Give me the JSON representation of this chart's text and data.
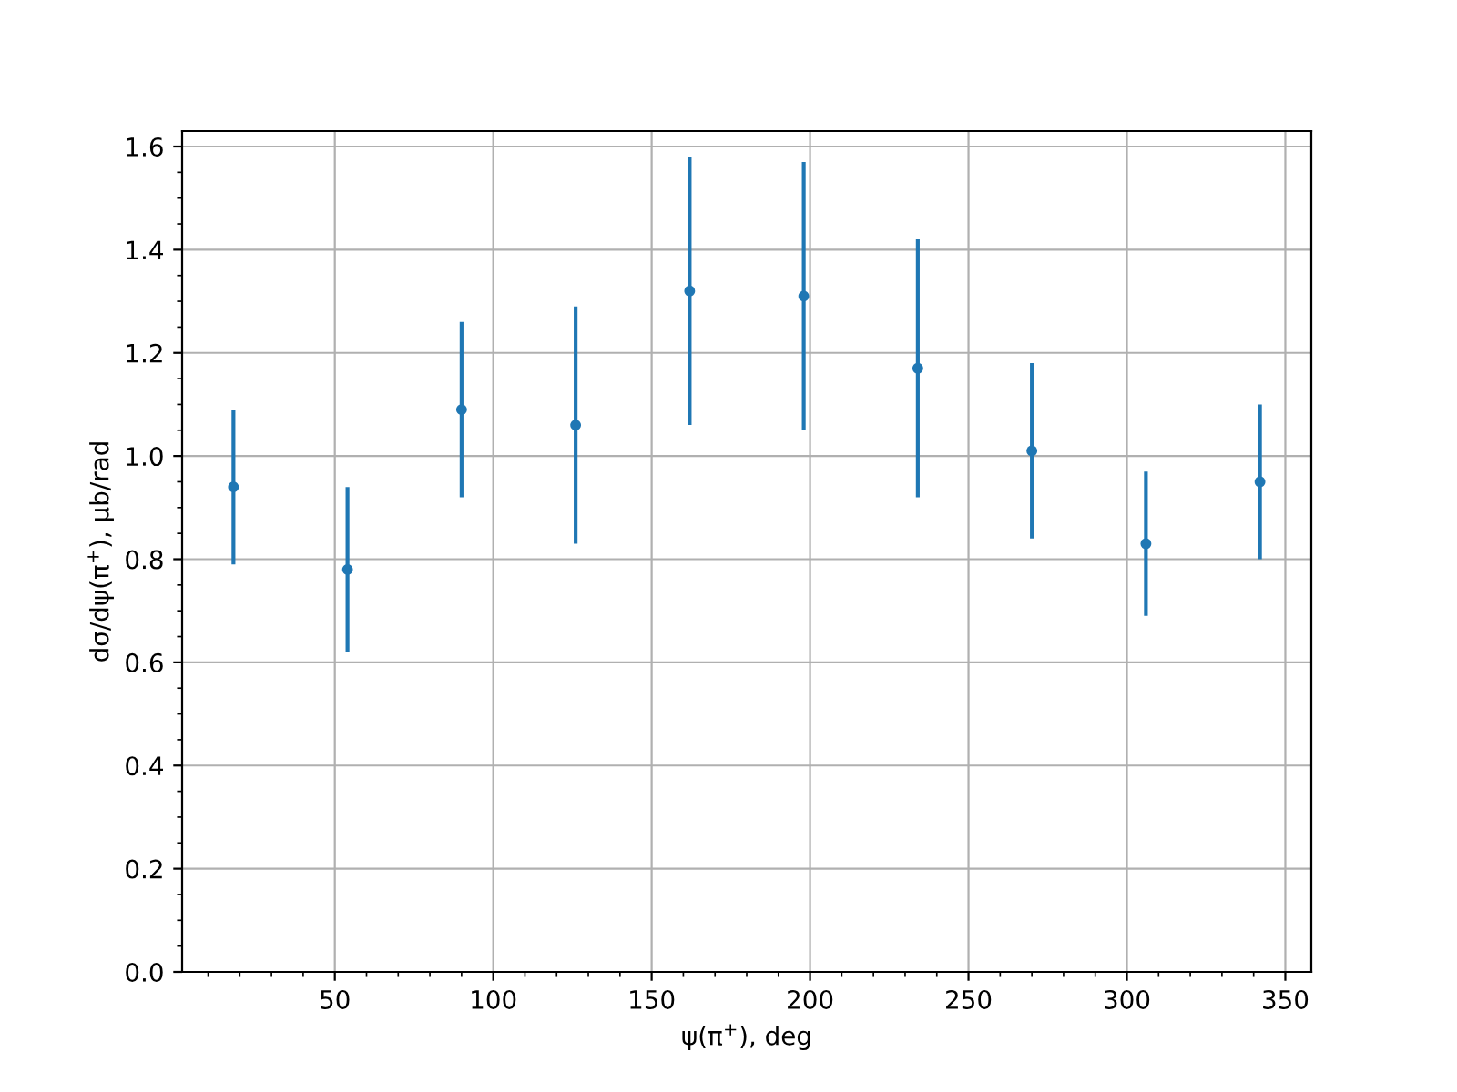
{
  "chart_data": {
    "type": "scatter",
    "xlabel": "ψ(π$^{+}$), deg",
    "ylabel": "dσ/dψ(π$^{+}$), μb/rad",
    "x": [
      18,
      54,
      90,
      126,
      162,
      198,
      234,
      270,
      306,
      342
    ],
    "series": [
      {
        "color": "#1f77b4",
        "values": [
          0.94,
          0.78,
          1.09,
          1.06,
          1.32,
          1.31,
          1.17,
          1.01,
          0.83,
          0.95
        ],
        "errors": [
          0.15,
          0.16,
          0.17,
          0.23,
          0.26,
          0.26,
          0.25,
          0.17,
          0.14,
          0.15
        ]
      }
    ],
    "marker": "circle",
    "grid": true,
    "xlim": [
      1.8,
      358.2
    ],
    "xticks": [
      50,
      100,
      150,
      200,
      250,
      300,
      350
    ],
    "ylim": [
      0,
      1.63
    ],
    "yticks": [
      {
        "value": 0,
        "label": "0.0"
      },
      0.2,
      0.4,
      0.6,
      0.8,
      {
        "value": 1,
        "label": "1.0"
      },
      1.2,
      1.4,
      1.6
    ]
  }
}
